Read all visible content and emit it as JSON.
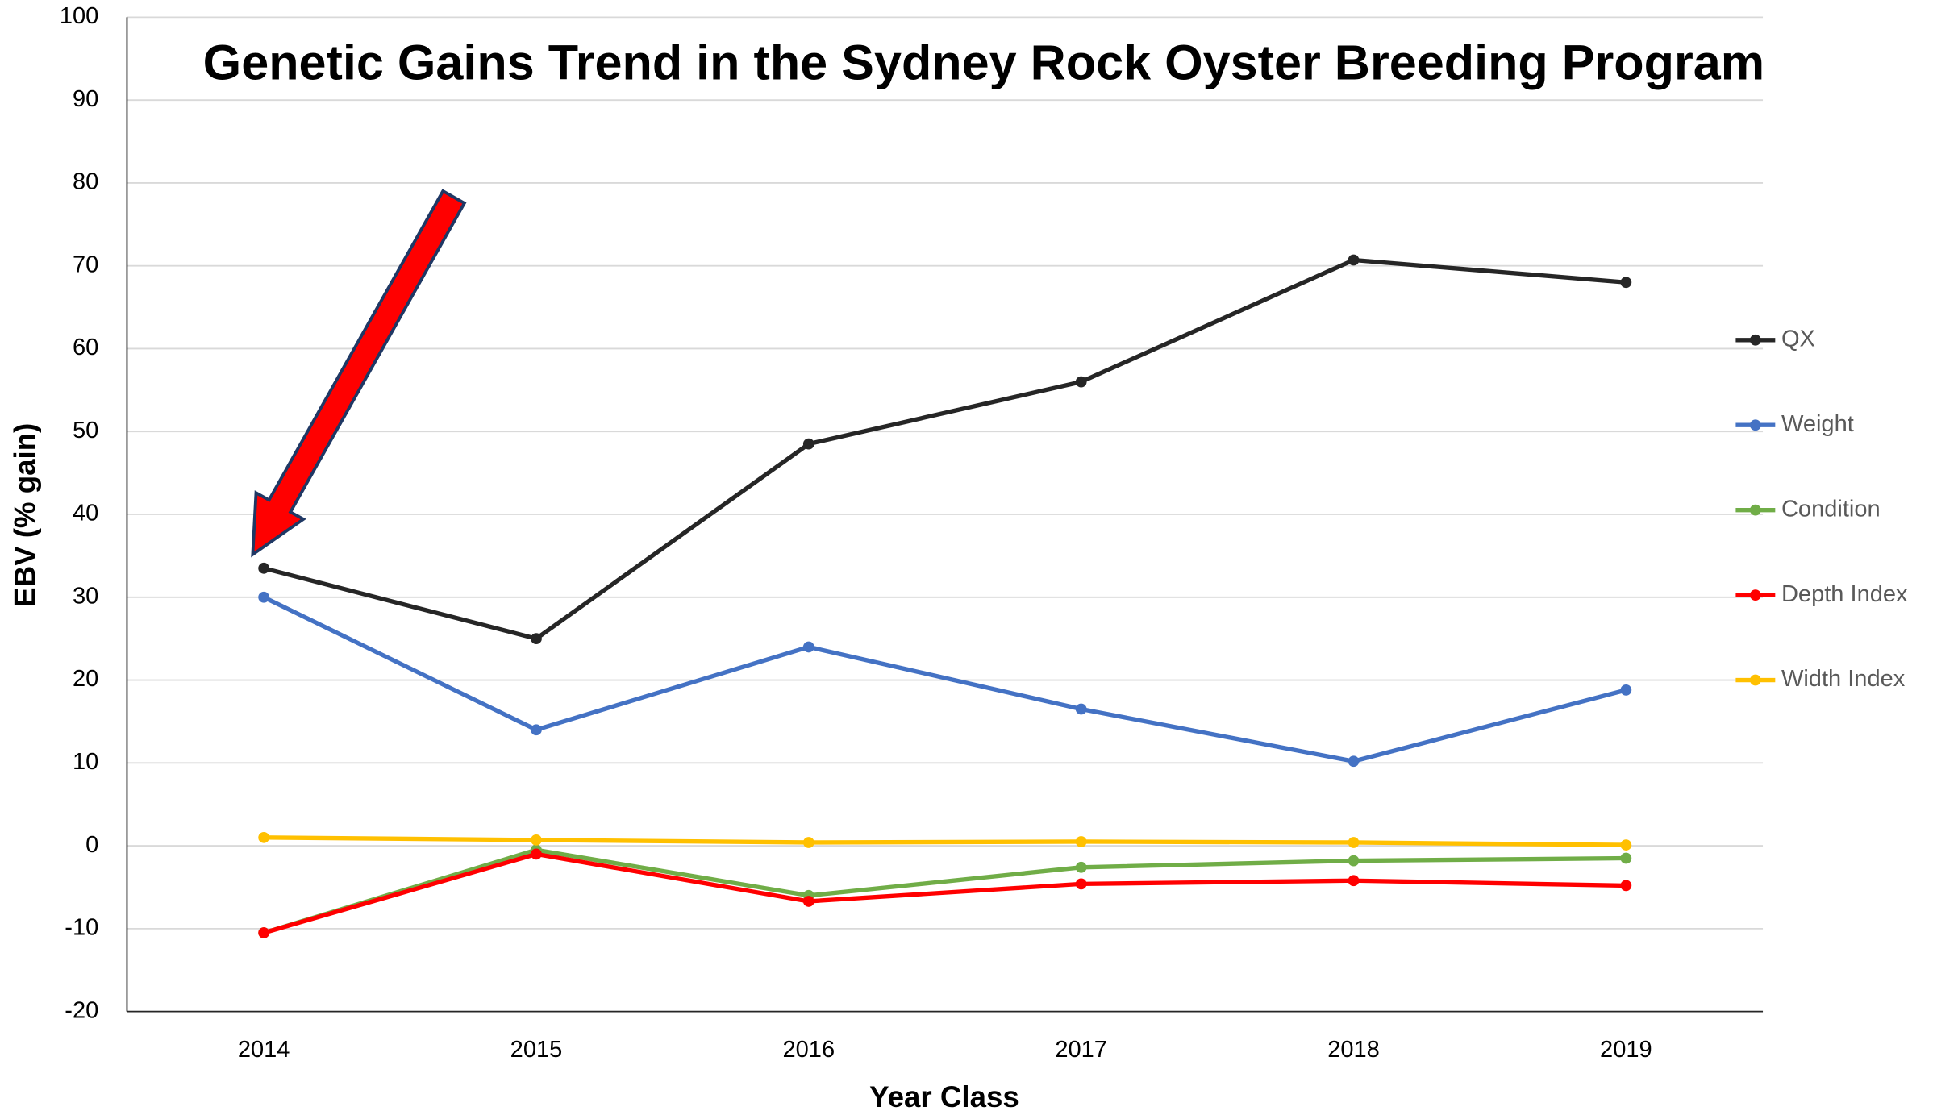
{
  "chart_data": {
    "type": "line",
    "title": "Genetic Gains Trend in the Sydney Rock Oyster Breeding Program",
    "x_label": "Year Class",
    "y_label": "EBV (% gain)",
    "categories": [
      "2014",
      "2015",
      "2016",
      "2017",
      "2018",
      "2019"
    ],
    "series": [
      {
        "name": "QX",
        "color": "#262626",
        "values": [
          33.5,
          25,
          48.5,
          56,
          70.7,
          68
        ]
      },
      {
        "name": "Weight",
        "color": "#4472c4",
        "values": [
          30,
          14,
          24,
          16.5,
          10.2,
          18.8
        ]
      },
      {
        "name": "Condition",
        "color": "#70ad47",
        "values": [
          -10.5,
          -0.5,
          -6,
          -2.6,
          -1.8,
          -1.5
        ]
      },
      {
        "name": "Depth Index",
        "color": "#ff0000",
        "values": [
          -10.5,
          -1,
          -6.7,
          -4.6,
          -4.2,
          -4.8
        ]
      },
      {
        "name": "Width Index",
        "color": "#ffc000",
        "values": [
          1,
          0.7,
          0.4,
          0.5,
          0.4,
          0.1
        ]
      }
    ],
    "ylim": [
      -20,
      100
    ],
    "yticks": [
      -20,
      -10,
      0,
      10,
      20,
      30,
      40,
      50,
      60,
      70,
      80,
      90,
      100
    ],
    "grid": true,
    "legend": "right"
  }
}
